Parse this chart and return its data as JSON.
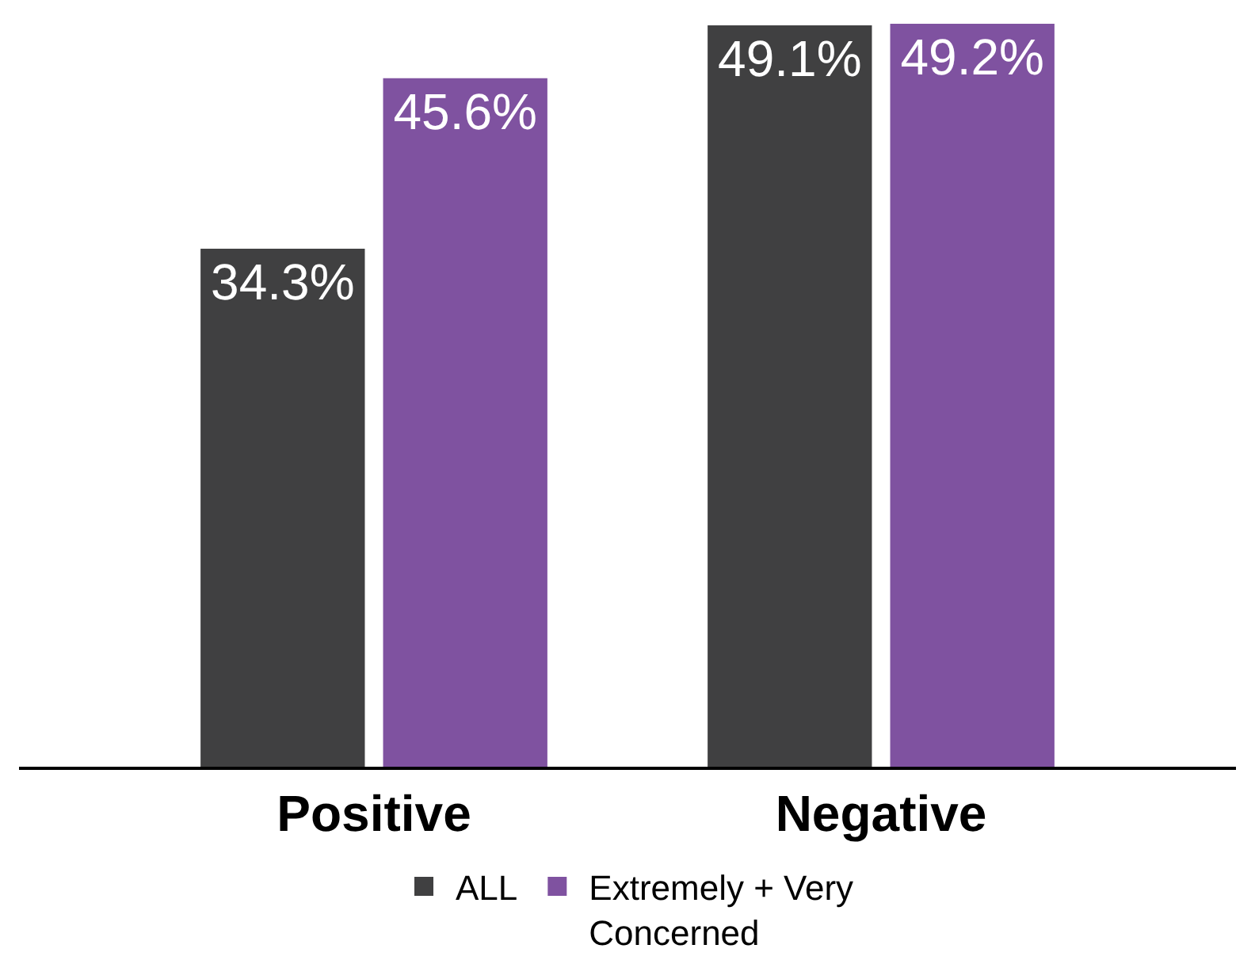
{
  "chart_data": {
    "type": "bar",
    "categories": [
      "Positive",
      "Negative"
    ],
    "series": [
      {
        "name": "ALL",
        "color": "#404041",
        "values": [
          34.3,
          49.1
        ],
        "value_labels": [
          "34.3%",
          "49.1%"
        ]
      },
      {
        "name": "Extremely + Very Concerned",
        "color": "#7f52a0",
        "values": [
          45.6,
          49.2
        ],
        "value_labels": [
          "45.6%",
          "49.2%"
        ]
      }
    ],
    "legend": "bottom"
  }
}
